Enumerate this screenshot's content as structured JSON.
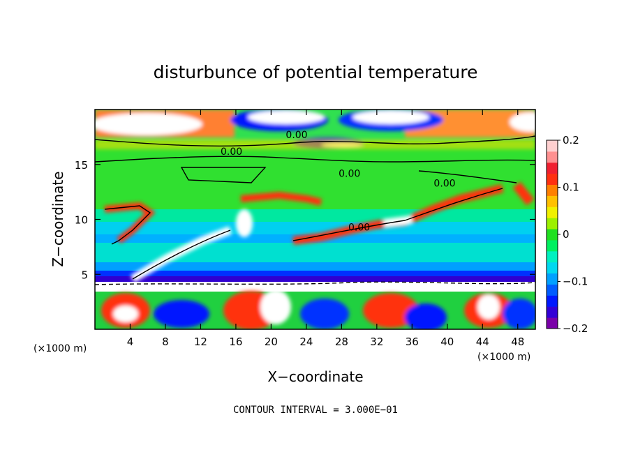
{
  "chart_data": {
    "type": "heatmap",
    "title": "disturbunce of potential temperature",
    "xlabel": "X−coordinate",
    "ylabel": "Z−coordinate",
    "x_unit_left": "(×1000 m)",
    "x_unit_right": "(×1000 m)",
    "xlim": [
      0,
      50
    ],
    "ylim": [
      0,
      20
    ],
    "x_ticks": [
      4,
      8,
      12,
      16,
      20,
      24,
      28,
      32,
      36,
      40,
      44,
      48
    ],
    "y_ticks": [
      5,
      10,
      15
    ],
    "colorbar": {
      "range": [
        -0.2,
        0.2
      ],
      "tick_values": [
        0.2,
        0.1,
        0,
        -0.1,
        -0.2
      ],
      "tick_labels": [
        "0.2",
        "0.1",
        "0",
        "−0.1",
        "−0.2"
      ],
      "colors": [
        "#7a00a8",
        "#3300d6",
        "#0018ff",
        "#005cff",
        "#00a0ff",
        "#00d8f0",
        "#00f0c0",
        "#00f060",
        "#20e020",
        "#9cf000",
        "#f0f000",
        "#ffc000",
        "#ff8000",
        "#ff3010",
        "#f02030",
        "#ff9090",
        "#ffd0d0"
      ]
    },
    "contour_labels": [
      {
        "text": "0.00",
        "x": 22.9,
        "z": 17.7
      },
      {
        "text": "0.00",
        "x": 15.5,
        "z": 16.2
      },
      {
        "text": "0.00",
        "x": 28.9,
        "z": 14.2
      },
      {
        "text": "0.00",
        "x": 39.7,
        "z": 13.3
      },
      {
        "text": "0.00",
        "x": 30.0,
        "z": 9.3
      }
    ],
    "contour_interval_text": "CONTOUR INTERVAL = 3.000E−01"
  }
}
